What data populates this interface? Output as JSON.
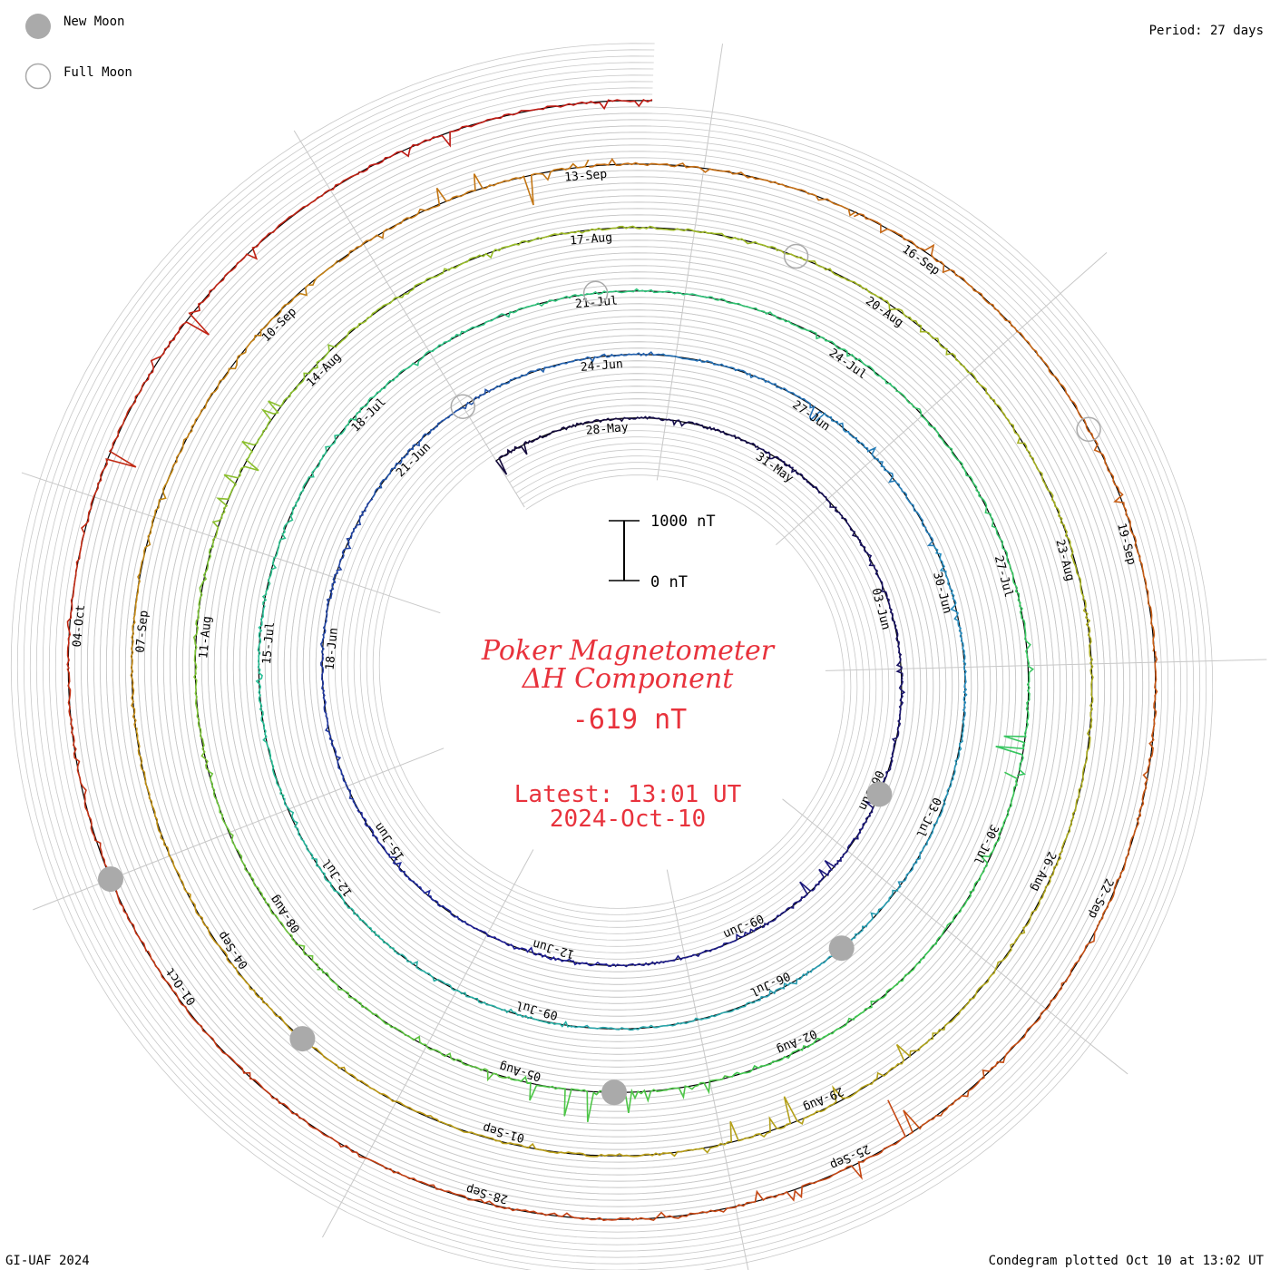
{
  "header": {
    "period": "Period: 27 days"
  },
  "legend": {
    "new_moon": "New Moon",
    "full_moon": "Full Moon"
  },
  "footer": {
    "credit": "GI-UAF 2024",
    "plotted": "Condegram plotted Oct 10 at 13:02 UT"
  },
  "scale_bar": {
    "top_label": "1000 nT",
    "bottom_label": "0 nT"
  },
  "colors": {
    "title_red": "#e8323c",
    "grid": "#c8c8c8",
    "moon_fill": "#aaaaaa",
    "moon_stroke": "#aaaaaa"
  },
  "chart_data": {
    "type": "condegram-spiral",
    "title": "Poker Magnetometer",
    "subtitle": "ΔH Component",
    "current_value": "-619 nT",
    "latest_time": "Latest: 13:01 UT",
    "latest_date": "2024-Oct-10",
    "period_days": 27,
    "start_date": "2024-05-26",
    "end_date": "2024-10-10",
    "date_labels": [
      "28-May",
      "31-May",
      "03-Jun",
      "06-Jun",
      "09-Jun",
      "12-Jun",
      "15-Jun",
      "18-Jun",
      "21-Jun",
      "24-Jun",
      "27-Jun",
      "30-Jun",
      "03-Jul",
      "06-Jul",
      "09-Jul",
      "12-Jul",
      "15-Jul",
      "18-Jul",
      "21-Jul",
      "24-Jul",
      "27-Jul",
      "30-Jul",
      "02-Aug",
      "05-Aug",
      "08-Aug",
      "11-Aug",
      "14-Aug",
      "17-Aug",
      "20-Aug",
      "23-Aug",
      "26-Aug",
      "29-Aug",
      "01-Sep",
      "04-Sep",
      "07-Sep",
      "10-Sep",
      "13-Sep",
      "16-Sep",
      "19-Sep",
      "22-Sep",
      "25-Sep",
      "28-Sep",
      "01-Oct",
      "04-Oct"
    ],
    "new_moon_dates": [
      "2024-06-06",
      "2024-07-05",
      "2024-08-04",
      "2024-09-03",
      "2024-10-02"
    ],
    "full_moon_dates": [
      "2024-06-22",
      "2024-07-21",
      "2024-08-19",
      "2024-09-18"
    ],
    "disturbances": [
      {
        "date": "2024-05-26",
        "min_nT": -400,
        "max_nT": 50
      },
      {
        "date": "2024-06-07",
        "min_nT": -450,
        "max_nT": 80
      },
      {
        "date": "2024-06-28",
        "min_nT": -500,
        "max_nT": 150
      },
      {
        "date": "2024-07-29",
        "min_nT": -450,
        "max_nT": 250
      },
      {
        "date": "2024-08-04",
        "min_nT": -300,
        "max_nT": 900
      },
      {
        "date": "2024-08-13",
        "min_nT": -500,
        "max_nT": 400
      },
      {
        "date": "2024-08-29",
        "min_nT": -600,
        "max_nT": 300
      },
      {
        "date": "2024-09-12",
        "min_nT": -600,
        "max_nT": 500
      },
      {
        "date": "2024-09-17",
        "min_nT": -700,
        "max_nT": 600
      },
      {
        "date": "2024-09-25",
        "min_nT": -800,
        "max_nT": 400
      },
      {
        "date": "2024-10-06",
        "min_nT": -600,
        "max_nT": 300
      },
      {
        "date": "2024-10-10",
        "min_nT": -619,
        "max_nT": 100
      }
    ],
    "scale_nT": [
      0,
      1000
    ]
  }
}
